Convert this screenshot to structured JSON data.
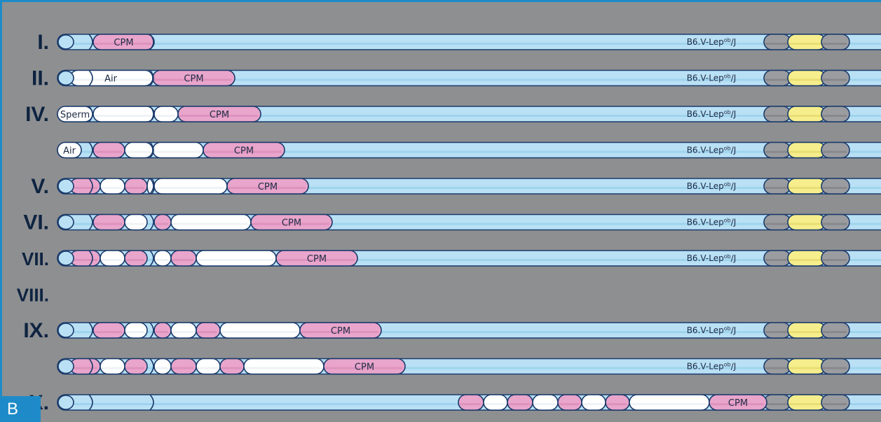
{
  "panel_label": "B",
  "strain_label": "B6.V-Lep",
  "strain_sup": "ob",
  "strain_suffix": "/J",
  "colors": {
    "background": "#8e8f91",
    "frame_accent": "#1e8bc8",
    "medium": "#b9e0f4",
    "medium_shade": "#8ccbea",
    "cpm": "#e9a5cb",
    "cpm_shade": "#d98bb9",
    "air": "#ffffff",
    "gray": "#9a9ca0",
    "yellow": "#f6ee8c",
    "outline": "#1a3a6b"
  },
  "roman_labels": [
    {
      "text": "I.",
      "row": 0
    },
    {
      "text": "II.",
      "row": 1
    },
    {
      "text": "IV.",
      "row": 2
    },
    {
      "text": "V.",
      "row": 4
    },
    {
      "text": "VI.",
      "row": 5
    },
    {
      "text": "VII.",
      "row": 6
    },
    {
      "text": "VIII.",
      "row": 7
    },
    {
      "text": "IX.",
      "row": 8
    },
    {
      "text": "X.",
      "row": 10
    }
  ],
  "pipettes": [
    {
      "segments": [
        [
          "pink",
          133,
          220,
          "CPM"
        ]
      ],
      "label": null,
      "strain": true
    },
    {
      "segments": [
        [
          "white",
          100,
          218,
          "Air"
        ],
        [
          "pink",
          218,
          335,
          "CPM"
        ]
      ],
      "label": null,
      "strain": true
    },
    {
      "segments": [
        [
          "white",
          133,
          220,
          ""
        ],
        [
          "white",
          220,
          254,
          ""
        ],
        [
          "pink",
          254,
          372,
          "CPM"
        ]
      ],
      "label": "Sperm",
      "strain": true
    },
    {
      "segments": [
        [
          "pink",
          133,
          178,
          ""
        ],
        [
          "white",
          178,
          218,
          ""
        ],
        [
          "white",
          218,
          290,
          ""
        ],
        [
          "pink",
          290,
          406,
          "CPM"
        ]
      ],
      "label": "Air",
      "strain": true
    },
    {
      "segments": [
        [
          "pink",
          100,
          143,
          ""
        ],
        [
          "white",
          143,
          178,
          ""
        ],
        [
          "pink",
          178,
          210,
          ""
        ],
        [
          "white",
          210,
          220,
          ""
        ],
        [
          "white",
          220,
          324,
          ""
        ],
        [
          "pink",
          324,
          440,
          "CPM"
        ]
      ],
      "label": null,
      "strain": true
    },
    {
      "segments": [
        [
          "pink",
          133,
          178,
          ""
        ],
        [
          "white",
          178,
          210,
          ""
        ],
        [
          "pink",
          220,
          244,
          ""
        ],
        [
          "white",
          244,
          358,
          ""
        ],
        [
          "pink",
          358,
          474,
          "CPM"
        ]
      ],
      "label": null,
      "strain": true
    },
    {
      "segments": [
        [
          "pink",
          100,
          143,
          ""
        ],
        [
          "white",
          143,
          178,
          ""
        ],
        [
          "pink",
          178,
          210,
          ""
        ],
        [
          "white",
          220,
          244,
          ""
        ],
        [
          "pink",
          244,
          280,
          ""
        ],
        [
          "white",
          280,
          394,
          ""
        ],
        [
          "pink",
          394,
          510,
          "CPM"
        ]
      ],
      "label": null,
      "strain": true
    },
    {
      "segments": [
        [
          "pink",
          133,
          178,
          ""
        ],
        [
          "white",
          178,
          210,
          ""
        ],
        [
          "pink",
          220,
          244,
          ""
        ],
        [
          "white",
          244,
          280,
          ""
        ],
        [
          "pink",
          280,
          314,
          ""
        ],
        [
          "white",
          314,
          428,
          ""
        ],
        [
          "pink",
          428,
          544,
          "CPM"
        ]
      ],
      "label": null,
      "strain": true
    },
    {
      "segments": [
        [
          "pink",
          100,
          143,
          ""
        ],
        [
          "white",
          143,
          178,
          ""
        ],
        [
          "pink",
          178,
          210,
          ""
        ],
        [
          "white",
          220,
          244,
          ""
        ],
        [
          "pink",
          244,
          280,
          ""
        ],
        [
          "white",
          280,
          314,
          ""
        ],
        [
          "pink",
          314,
          348,
          ""
        ],
        [
          "white",
          348,
          462,
          ""
        ],
        [
          "pink",
          462,
          578,
          "CPM"
        ]
      ],
      "label": null,
      "strain": true
    },
    {
      "segments": [
        [
          "pink",
          654,
          690,
          ""
        ],
        [
          "white",
          690,
          724,
          ""
        ],
        [
          "pink",
          724,
          760,
          ""
        ],
        [
          "white",
          760,
          796,
          ""
        ],
        [
          "pink",
          796,
          830,
          ""
        ],
        [
          "white",
          830,
          864,
          ""
        ],
        [
          "pink",
          864,
          898,
          ""
        ],
        [
          "white",
          898,
          1012,
          ""
        ],
        [
          "pink",
          1012,
          1094,
          "CPM"
        ]
      ],
      "label": null,
      "strain": false
    }
  ],
  "pipette_rows": [
    0,
    1,
    2,
    3,
    4,
    5,
    6,
    8,
    9,
    10
  ]
}
